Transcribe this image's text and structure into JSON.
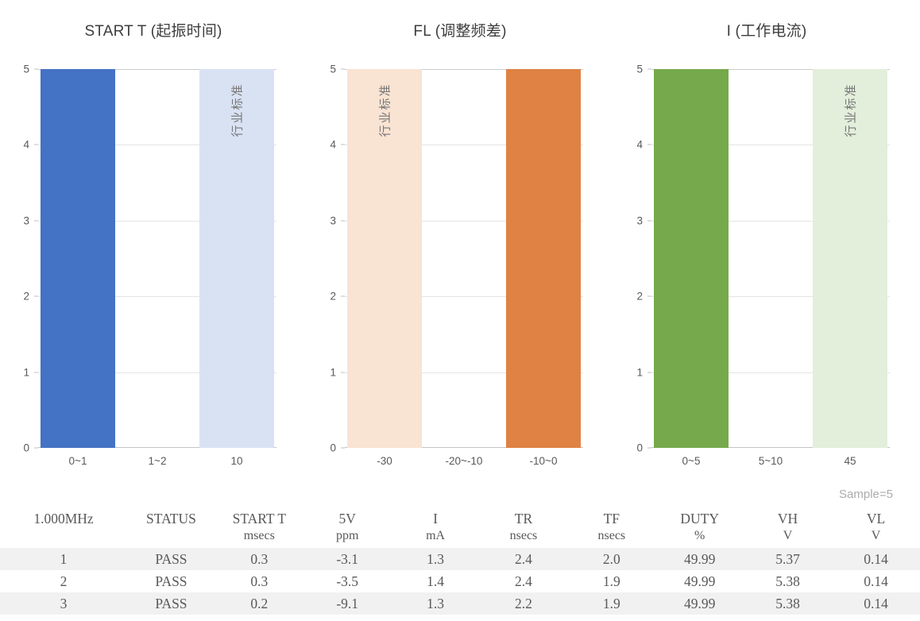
{
  "chart_data": [
    {
      "type": "bar",
      "title": "START T (起振时间)",
      "categories": [
        "0~1",
        "1~2",
        "10"
      ],
      "values": [
        5,
        0,
        5
      ],
      "ylim": [
        0,
        5
      ],
      "yticks": [
        0,
        1,
        2,
        3,
        4,
        5
      ],
      "bar_colors": [
        "#4472C4",
        "none",
        "#D9E2F3"
      ],
      "annotations": [
        "",
        "",
        "行业标准"
      ],
      "grid": true,
      "legend": false
    },
    {
      "type": "bar",
      "title": "FL (调整频差)",
      "categories": [
        "-30",
        "-20~-10",
        "-10~0"
      ],
      "values": [
        5,
        0,
        5
      ],
      "ylim": [
        0,
        5
      ],
      "yticks": [
        0,
        1,
        2,
        3,
        4,
        5
      ],
      "bar_colors": [
        "#F9E3D3",
        "none",
        "#DF8244"
      ],
      "annotations": [
        "行业标准",
        "",
        ""
      ],
      "grid": true,
      "legend": false
    },
    {
      "type": "bar",
      "title": "I (工作电流)",
      "categories": [
        "0~5",
        "5~10",
        "45"
      ],
      "values": [
        5,
        0,
        5
      ],
      "ylim": [
        0,
        5
      ],
      "yticks": [
        0,
        1,
        2,
        3,
        4,
        5
      ],
      "bar_colors": [
        "#76A94C",
        "none",
        "#E3EEDB"
      ],
      "annotations": [
        "",
        "",
        "行业标准"
      ],
      "grid": true,
      "legend": false
    }
  ],
  "table": {
    "sample_label": "Sample=5",
    "columns": [
      {
        "name": "1.000MHz",
        "unit": ""
      },
      {
        "name": "STATUS",
        "unit": ""
      },
      {
        "name": "START T",
        "unit": "msecs"
      },
      {
        "name": "5V",
        "unit": "ppm"
      },
      {
        "name": "I",
        "unit": "mA"
      },
      {
        "name": "TR",
        "unit": "nsecs"
      },
      {
        "name": "TF",
        "unit": "nsecs"
      },
      {
        "name": "DUTY",
        "unit": "%"
      },
      {
        "name": "VH",
        "unit": "V"
      },
      {
        "name": "VL",
        "unit": "V"
      }
    ],
    "rows": [
      [
        "1",
        "PASS",
        "0.3",
        "-3.1",
        "1.3",
        "2.4",
        "2.0",
        "49.99",
        "5.37",
        "0.14"
      ],
      [
        "2",
        "PASS",
        "0.3",
        "-3.5",
        "1.4",
        "2.4",
        "1.9",
        "49.99",
        "5.38",
        "0.14"
      ],
      [
        "3",
        "PASS",
        "0.2",
        "-9.1",
        "1.3",
        "2.2",
        "1.9",
        "49.99",
        "5.38",
        "0.14"
      ]
    ],
    "status_values": [
      "PASS",
      "PASS",
      "PASS"
    ]
  },
  "colors": {
    "accent_blue": "#4472C4",
    "accent_blue_light": "#D9E2F3",
    "accent_orange": "#DF8244",
    "accent_orange_light": "#F9E3D3",
    "accent_green": "#76A94C",
    "accent_green_light": "#E3EEDB",
    "gridline": "#E4E4E4",
    "axis_line": "#C4C4C4",
    "text_gray": "#595959",
    "annotation_gray": "#767676",
    "sample_label_gray": "#ABABAB",
    "row_stripe": "#F1F1F1"
  }
}
